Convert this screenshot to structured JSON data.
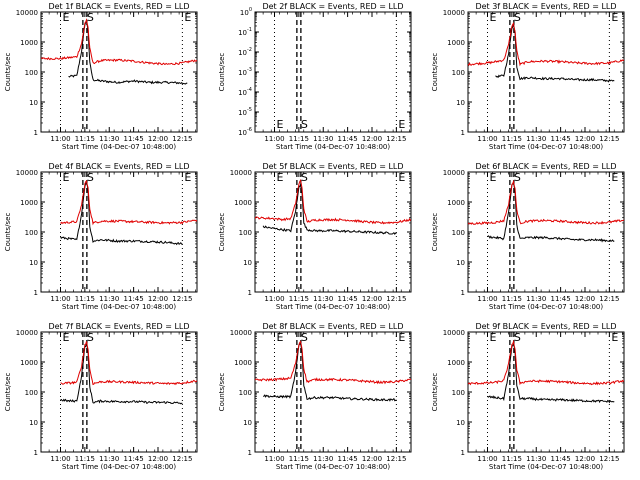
{
  "figure": {
    "colors": {
      "events": "#000000",
      "lld": "#e00000",
      "axes": "#000000",
      "background": "#ffffff"
    },
    "x_ticks": [
      "11:00",
      "11:15",
      "11:30",
      "11:45",
      "12:00",
      "12:15"
    ],
    "y_ticks_main": [
      "1",
      "10",
      "100",
      "1000",
      "10000"
    ],
    "y_ticks_det2": [
      "10^-6",
      "10^-5",
      "10^-4",
      "10^-3",
      "10^-2",
      "10^-1",
      "10^0"
    ],
    "ylabel": "Counts/sec",
    "xlabel": "Start Time (04-Dec-07 10:48:00)",
    "marker_labels": {
      "start": "E",
      "peak": "S",
      "end": "E"
    }
  },
  "chart_data": [
    {
      "type": "line",
      "title": "Det 1f BLACK = Events, RED = LLD",
      "xlabel": "Start Time (04-Dec-07 10:48:00)",
      "ylabel": "Counts/sec",
      "yscale": "log",
      "ylim": [
        1,
        10000
      ],
      "xlim": [
        "10:48",
        "12:24"
      ],
      "x_range_data": [
        "11:05",
        "12:18"
      ],
      "series": [
        {
          "name": "Events",
          "color": "#000000",
          "x": [
            "11:05",
            "11:10",
            "11:13",
            "11:15",
            "11:16",
            "11:17",
            "11:18",
            "11:20",
            "11:25",
            "11:35",
            "11:45",
            "11:55",
            "12:05",
            "12:18"
          ],
          "values": [
            70,
            75,
            500,
            4000,
            5000,
            2500,
            200,
            55,
            50,
            45,
            50,
            45,
            45,
            42
          ]
        },
        {
          "name": "LLD",
          "color": "#e00000",
          "x": [
            "10:48",
            "11:00",
            "11:05",
            "11:10",
            "11:13",
            "11:15",
            "11:16",
            "11:17",
            "11:18",
            "11:20",
            "11:25",
            "11:35",
            "11:45",
            "11:55",
            "12:05",
            "12:15",
            "12:24"
          ],
          "values": [
            280,
            280,
            300,
            320,
            900,
            4200,
            5500,
            3000,
            600,
            200,
            240,
            250,
            230,
            200,
            180,
            200,
            250
          ]
        }
      ],
      "markers": [
        {
          "label": "E",
          "x": "11:00",
          "style": "dotted"
        },
        {
          "label": "S",
          "x": "11:15",
          "style": "dashed"
        },
        {
          "label": "E",
          "x": "12:15",
          "style": "dotted"
        }
      ]
    },
    {
      "type": "line",
      "title": "Det 2f BLACK = Events, RED = LLD",
      "xlabel": "Start Time (04-Dec-07 10:48:00)",
      "ylabel": "Counts/sec",
      "yscale": "log",
      "ylim": [
        1e-06,
        1
      ],
      "xlim": [
        "10:48",
        "12:24"
      ],
      "series": [],
      "markers": [
        {
          "label": "E",
          "x": "11:00",
          "style": "dotted"
        },
        {
          "label": "S",
          "x": "11:15",
          "style": "dashed"
        },
        {
          "label": "E",
          "x": "12:15",
          "style": "dotted"
        }
      ]
    },
    {
      "type": "line",
      "title": "Det 3f BLACK = Events, RED = LLD",
      "xlabel": "Start Time (04-Dec-07 10:48:00)",
      "ylabel": "Counts/sec",
      "yscale": "log",
      "ylim": [
        1,
        10000
      ],
      "xlim": [
        "10:48",
        "12:24"
      ],
      "series": [
        {
          "name": "Events",
          "color": "#000000",
          "x": [
            "11:05",
            "11:10",
            "11:13",
            "11:15",
            "11:16",
            "11:17",
            "11:18",
            "11:20",
            "11:25",
            "11:35",
            "11:45",
            "11:55",
            "12:05",
            "12:18"
          ],
          "values": [
            70,
            75,
            400,
            3000,
            3800,
            2000,
            150,
            60,
            65,
            60,
            60,
            55,
            55,
            50
          ]
        },
        {
          "name": "LLD",
          "color": "#e00000",
          "x": [
            "10:48",
            "11:00",
            "11:05",
            "11:10",
            "11:13",
            "11:15",
            "11:16",
            "11:17",
            "11:18",
            "11:20",
            "11:25",
            "11:35",
            "11:45",
            "11:55",
            "12:05",
            "12:15",
            "12:24"
          ],
          "values": [
            180,
            200,
            220,
            250,
            800,
            3500,
            4000,
            2200,
            500,
            180,
            220,
            230,
            220,
            200,
            190,
            200,
            250
          ]
        }
      ],
      "markers": [
        {
          "label": "E",
          "x": "11:00",
          "style": "dotted"
        },
        {
          "label": "S",
          "x": "11:15",
          "style": "dashed"
        },
        {
          "label": "E",
          "x": "12:15",
          "style": "dotted"
        }
      ]
    },
    {
      "type": "line",
      "title": "Det 4f BLACK = Events, RED = LLD",
      "xlabel": "Start Time (04-Dec-07 10:48:00)",
      "ylabel": "Counts/sec",
      "yscale": "log",
      "ylim": [
        1,
        10000
      ],
      "xlim": [
        "10:48",
        "12:24"
      ],
      "series": [
        {
          "name": "Events",
          "color": "#000000",
          "x": [
            "11:00",
            "11:05",
            "11:10",
            "11:13",
            "11:15",
            "11:16",
            "11:17",
            "11:18",
            "11:20",
            "11:25",
            "11:35",
            "11:45",
            "11:55",
            "12:05",
            "12:15"
          ],
          "values": [
            65,
            60,
            55,
            400,
            3500,
            4500,
            2500,
            150,
            50,
            55,
            50,
            50,
            48,
            45,
            40
          ]
        },
        {
          "name": "LLD",
          "color": "#e00000",
          "x": [
            "11:00",
            "11:05",
            "11:10",
            "11:13",
            "11:15",
            "11:16",
            "11:17",
            "11:18",
            "11:20",
            "11:25",
            "11:35",
            "11:45",
            "11:55",
            "12:05",
            "12:15",
            "12:24"
          ],
          "values": [
            200,
            210,
            220,
            800,
            4000,
            5000,
            2800,
            600,
            200,
            230,
            230,
            220,
            210,
            200,
            210,
            250
          ]
        }
      ],
      "markers": [
        {
          "label": "E",
          "x": "11:00",
          "style": "dotted"
        },
        {
          "label": "S",
          "x": "11:15",
          "style": "dashed"
        },
        {
          "label": "E",
          "x": "12:15",
          "style": "dotted"
        }
      ]
    },
    {
      "type": "line",
      "title": "Det 5f BLACK = Events, RED = LLD",
      "xlabel": "Start Time (04-Dec-07 10:48:00)",
      "ylabel": "Counts/sec",
      "yscale": "log",
      "ylim": [
        1,
        10000
      ],
      "xlim": [
        "10:48",
        "12:24"
      ],
      "series": [
        {
          "name": "Events",
          "color": "#000000",
          "x": [
            "10:53",
            "11:00",
            "11:05",
            "11:10",
            "11:13",
            "11:15",
            "11:16",
            "11:17",
            "11:18",
            "11:20",
            "11:25",
            "11:35",
            "11:45",
            "11:55",
            "12:05",
            "12:15"
          ],
          "values": [
            150,
            130,
            120,
            110,
            500,
            3000,
            4000,
            2000,
            200,
            120,
            110,
            110,
            105,
            100,
            95,
            90
          ]
        },
        {
          "name": "LLD",
          "color": "#e00000",
          "x": [
            "10:48",
            "11:00",
            "11:05",
            "11:10",
            "11:13",
            "11:15",
            "11:16",
            "11:17",
            "11:18",
            "11:20",
            "11:25",
            "11:35",
            "11:45",
            "11:55",
            "12:05",
            "12:15",
            "12:24"
          ],
          "values": [
            300,
            280,
            260,
            280,
            900,
            4000,
            5200,
            2800,
            600,
            220,
            250,
            260,
            250,
            220,
            200,
            210,
            260
          ]
        }
      ],
      "markers": [
        {
          "label": "E",
          "x": "11:00",
          "style": "dotted"
        },
        {
          "label": "S",
          "x": "11:15",
          "style": "dashed"
        },
        {
          "label": "E",
          "x": "12:15",
          "style": "dotted"
        }
      ]
    },
    {
      "type": "line",
      "title": "Det 6f BLACK = Events, RED = LLD",
      "xlabel": "Start Time (04-Dec-07 10:48:00)",
      "ylabel": "Counts/sec",
      "yscale": "log",
      "ylim": [
        1,
        10000
      ],
      "xlim": [
        "10:48",
        "12:24"
      ],
      "series": [
        {
          "name": "Events",
          "color": "#000000",
          "x": [
            "11:00",
            "11:05",
            "11:10",
            "11:13",
            "11:15",
            "11:16",
            "11:17",
            "11:18",
            "11:20",
            "11:25",
            "11:35",
            "11:45",
            "11:55",
            "12:05",
            "12:18"
          ],
          "values": [
            70,
            65,
            60,
            450,
            3500,
            4200,
            2200,
            170,
            60,
            65,
            65,
            60,
            55,
            55,
            50
          ]
        },
        {
          "name": "LLD",
          "color": "#e00000",
          "x": [
            "10:48",
            "11:00",
            "11:05",
            "11:10",
            "11:13",
            "11:15",
            "11:16",
            "11:17",
            "11:18",
            "11:20",
            "11:25",
            "11:35",
            "11:45",
            "11:55",
            "12:05",
            "12:15",
            "12:24"
          ],
          "values": [
            190,
            200,
            210,
            240,
            850,
            3800,
            4800,
            2600,
            550,
            200,
            230,
            240,
            230,
            210,
            200,
            210,
            250
          ]
        }
      ],
      "markers": [
        {
          "label": "E",
          "x": "11:00",
          "style": "dotted"
        },
        {
          "label": "S",
          "x": "11:15",
          "style": "dashed"
        },
        {
          "label": "E",
          "x": "12:15",
          "style": "dotted"
        }
      ]
    },
    {
      "type": "line",
      "title": "Det 7f BLACK = Events, RED = LLD",
      "xlabel": "Start Time (04-Dec-07 10:48:00)",
      "ylabel": "Counts/sec",
      "yscale": "log",
      "ylim": [
        1,
        10000
      ],
      "xlim": [
        "10:48",
        "12:24"
      ],
      "series": [
        {
          "name": "Events",
          "color": "#000000",
          "x": [
            "11:00",
            "11:05",
            "11:10",
            "11:13",
            "11:15",
            "11:16",
            "11:17",
            "11:18",
            "11:20",
            "11:25",
            "11:35",
            "11:45",
            "11:55",
            "12:05",
            "12:15"
          ],
          "values": [
            55,
            50,
            50,
            350,
            3200,
            4000,
            2100,
            150,
            45,
            50,
            48,
            48,
            45,
            45,
            42
          ]
        },
        {
          "name": "LLD",
          "color": "#e00000",
          "x": [
            "11:00",
            "11:05",
            "11:10",
            "11:13",
            "11:15",
            "11:16",
            "11:17",
            "11:18",
            "11:20",
            "11:25",
            "11:35",
            "11:45",
            "11:55",
            "12:05",
            "12:15",
            "12:24"
          ],
          "values": [
            190,
            200,
            210,
            750,
            3800,
            4700,
            2600,
            550,
            190,
            220,
            220,
            210,
            200,
            190,
            200,
            240
          ]
        }
      ],
      "markers": [
        {
          "label": "E",
          "x": "11:00",
          "style": "dotted"
        },
        {
          "label": "S",
          "x": "11:15",
          "style": "dashed"
        },
        {
          "label": "E",
          "x": "12:15",
          "style": "dotted"
        }
      ]
    },
    {
      "type": "line",
      "title": "Det 8f BLACK = Events, RED = LLD",
      "xlabel": "Start Time (04-Dec-07 10:48:00)",
      "ylabel": "Counts/sec",
      "yscale": "log",
      "ylim": [
        1,
        10000
      ],
      "xlim": [
        "10:48",
        "12:24"
      ],
      "series": [
        {
          "name": "Events",
          "color": "#000000",
          "x": [
            "10:53",
            "11:00",
            "11:05",
            "11:10",
            "11:13",
            "11:15",
            "11:16",
            "11:17",
            "11:18",
            "11:20",
            "11:25",
            "11:35",
            "11:45",
            "11:55",
            "12:05",
            "12:15"
          ],
          "values": [
            75,
            70,
            70,
            70,
            450,
            3500,
            4200,
            2200,
            170,
            60,
            65,
            65,
            60,
            58,
            55,
            55
          ]
        },
        {
          "name": "LLD",
          "color": "#e00000",
          "x": [
            "10:48",
            "11:00",
            "11:05",
            "11:10",
            "11:13",
            "11:15",
            "11:16",
            "11:17",
            "11:18",
            "11:20",
            "11:25",
            "11:35",
            "11:45",
            "11:55",
            "12:05",
            "12:15",
            "12:24"
          ],
          "values": [
            250,
            260,
            270,
            290,
            900,
            3900,
            5000,
            2700,
            600,
            220,
            260,
            260,
            250,
            230,
            210,
            220,
            260
          ]
        }
      ],
      "markers": [
        {
          "label": "E",
          "x": "11:00",
          "style": "dotted"
        },
        {
          "label": "S",
          "x": "11:15",
          "style": "dashed"
        },
        {
          "label": "E",
          "x": "12:15",
          "style": "dotted"
        }
      ]
    },
    {
      "type": "line",
      "title": "Det 9f BLACK = Events, RED = LLD",
      "xlabel": "Start Time (04-Dec-07 10:48:00)",
      "ylabel": "Counts/sec",
      "yscale": "log",
      "ylim": [
        1,
        10000
      ],
      "xlim": [
        "10:48",
        "12:24"
      ],
      "series": [
        {
          "name": "Events",
          "color": "#000000",
          "x": [
            "11:00",
            "11:05",
            "11:10",
            "11:13",
            "11:15",
            "11:16",
            "11:17",
            "11:18",
            "11:20",
            "11:25",
            "11:35",
            "11:45",
            "11:55",
            "12:05",
            "12:18"
          ],
          "values": [
            70,
            65,
            60,
            400,
            3300,
            4000,
            2100,
            160,
            60,
            60,
            55,
            55,
            52,
            50,
            48
          ]
        },
        {
          "name": "LLD",
          "color": "#e00000",
          "x": [
            "10:48",
            "11:00",
            "11:05",
            "11:10",
            "11:13",
            "11:15",
            "11:16",
            "11:17",
            "11:18",
            "11:20",
            "11:25",
            "11:35",
            "11:45",
            "11:55",
            "12:05",
            "12:15",
            "12:24"
          ],
          "values": [
            190,
            200,
            210,
            240,
            850,
            3800,
            4800,
            2600,
            550,
            200,
            230,
            230,
            220,
            200,
            190,
            200,
            240
          ]
        }
      ],
      "markers": [
        {
          "label": "E",
          "x": "11:00",
          "style": "dotted"
        },
        {
          "label": "S",
          "x": "11:15",
          "style": "dashed"
        },
        {
          "label": "E",
          "x": "12:15",
          "style": "dotted"
        }
      ]
    }
  ]
}
